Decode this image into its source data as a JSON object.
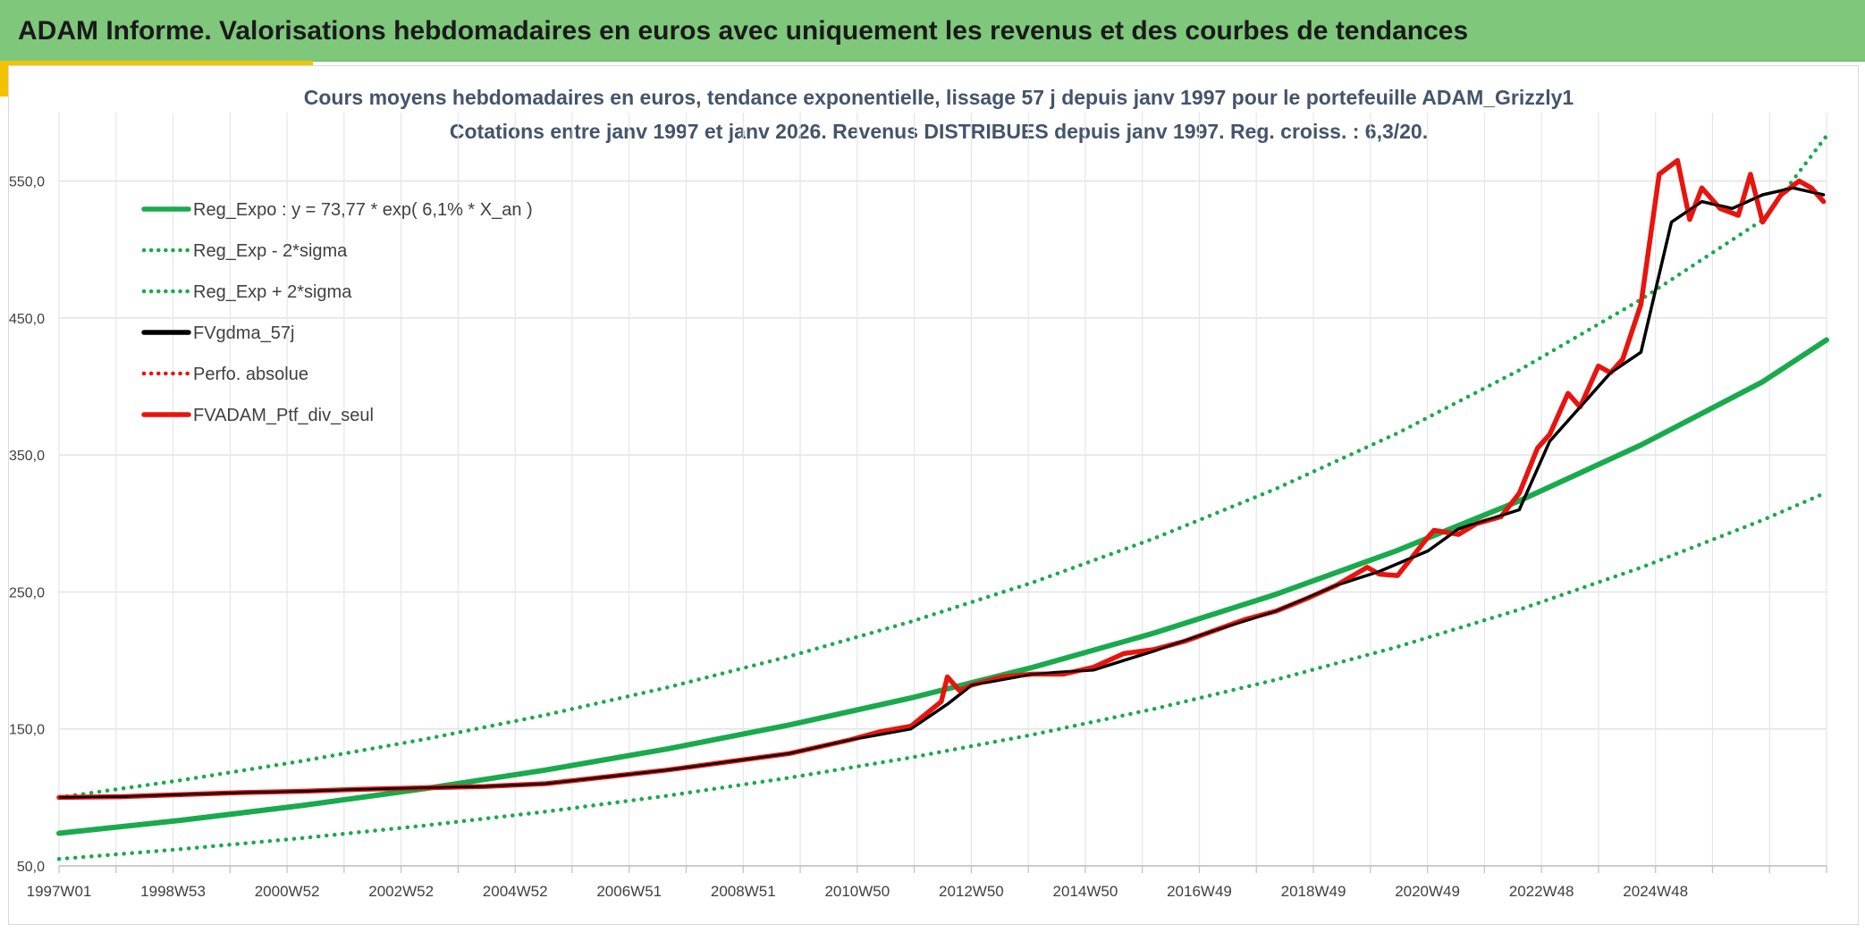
{
  "header": {
    "title": "ADAM Informe. Valorisations hebdomadaires en euros avec uniquement les revenus et des courbes de tendances"
  },
  "chart_data": {
    "type": "line",
    "title": "Cours moyens hebdomadaires en euros, tendance exponentielle, lissage 57 j depuis janv 1997 pour le portefeuille ADAM_Grizzly1",
    "subtitle": "Cotations entre janv 1997 et janv 2026. Revenus DISTRIBUES depuis janv 1997. Reg. croiss. : 6,3/20.",
    "xlabel": "",
    "ylabel": "",
    "x_ticks": [
      "1997W01",
      "1998W53",
      "2000W52",
      "2002W52",
      "2004W52",
      "2006W51",
      "2008W51",
      "2010W50",
      "2012W50",
      "2014W50",
      "2016W49",
      "2018W49",
      "2020W49",
      "2022W48",
      "2024W48"
    ],
    "x_range": [
      1997.0,
      2026.05
    ],
    "y_ticks": [
      "50,0",
      "150,0",
      "250,0",
      "350,0",
      "450,0",
      "550,0"
    ],
    "ylim": [
      50,
      600
    ],
    "grid": true,
    "legend_position": "top-left",
    "series": [
      {
        "name": "Reg_Expo : y = 73,77 * exp( 6,1% *  X_an )",
        "color": "#1aaa4e",
        "style": "solid",
        "x": [
          1997.0,
          1999.0,
          2001.0,
          2003.0,
          2005.0,
          2007.0,
          2009.0,
          2011.0,
          2013.0,
          2015.0,
          2017.0,
          2019.0,
          2021.0,
          2023.0,
          2025.0,
          2026.05
        ],
        "y": [
          73.8,
          83.3,
          94.1,
          106.3,
          120.0,
          135.4,
          152.9,
          172.6,
          194.9,
          220.0,
          248.3,
          280.4,
          316.5,
          357.3,
          403.4,
          434.0
        ]
      },
      {
        "name": "Reg_Exp - 2*sigma",
        "color": "#1aaa4e",
        "style": "dotted",
        "x": [
          1997.0,
          1999.0,
          2001.0,
          2003.0,
          2005.0,
          2007.0,
          2009.0,
          2011.0,
          2013.0,
          2015.0,
          2017.0,
          2019.0,
          2021.0,
          2023.0,
          2025.0,
          2026.05
        ],
        "y": [
          55.0,
          62.2,
          70.3,
          79.4,
          89.6,
          101.2,
          114.3,
          129.1,
          145.8,
          164.6,
          185.9,
          210.0,
          237.1,
          267.8,
          302.5,
          322.7
        ]
      },
      {
        "name": "Reg_Exp + 2*sigma",
        "color": "#1aaa4e",
        "style": "dotted",
        "x": [
          1997.0,
          1999.0,
          2001.0,
          2003.0,
          2005.0,
          2007.0,
          2009.0,
          2011.0,
          2013.0,
          2015.0,
          2017.0,
          2019.0,
          2021.0,
          2023.0,
          2025.0,
          2026.05
        ],
        "y": [
          100.0,
          112.5,
          126.6,
          142.4,
          160.2,
          180.3,
          202.9,
          228.3,
          256.9,
          289.1,
          325.3,
          366.0,
          411.9,
          463.5,
          521.6,
          583.0
        ]
      },
      {
        "name": "FVgdma_57j",
        "color": "#000000",
        "style": "solid",
        "x": [
          1997.0,
          1998.0,
          1999.0,
          2000.0,
          2001.0,
          2002.0,
          2003.0,
          2004.0,
          2005.0,
          2006.0,
          2007.0,
          2008.0,
          2009.0,
          2010.0,
          2011.0,
          2011.6,
          2012.0,
          2012.5,
          2013.0,
          2014.0,
          2015.0,
          2016.0,
          2017.0,
          2018.0,
          2018.7,
          2019.5,
          2020.0,
          2021.0,
          2021.5,
          2022.0,
          2022.5,
          2023.0,
          2023.5,
          2024.0,
          2024.5,
          2025.0,
          2025.5,
          2026.0
        ],
        "y": [
          100.0,
          100.5,
          102.0,
          103.5,
          104.5,
          106.0,
          107.0,
          108.0,
          110.0,
          115.0,
          120.0,
          126.0,
          132.0,
          142.0,
          150.0,
          168.0,
          182.0,
          186.0,
          190.0,
          193.0,
          207.0,
          222.0,
          236.0,
          255.0,
          265.0,
          280.0,
          296.0,
          310.0,
          360.0,
          385.0,
          410.0,
          425.0,
          520.0,
          535.0,
          530.0,
          540.0,
          545.0,
          540.0
        ]
      },
      {
        "name": "Perfo. absolue",
        "color": "#e8140e",
        "style": "dotted",
        "x": [],
        "y": []
      },
      {
        "name": "FVADAM_Ptf_div_seul",
        "color": "#e8140e",
        "style": "solid",
        "x": [
          1997.0,
          1998.0,
          1999.0,
          2000.0,
          2001.0,
          2002.0,
          2003.0,
          2004.0,
          2005.0,
          2006.0,
          2007.0,
          2008.0,
          2009.0,
          2010.0,
          2010.5,
          2011.0,
          2011.5,
          2011.6,
          2011.8,
          2012.0,
          2012.5,
          2013.0,
          2013.5,
          2014.0,
          2014.5,
          2015.0,
          2015.5,
          2016.0,
          2016.5,
          2017.0,
          2017.5,
          2018.0,
          2018.5,
          2018.7,
          2019.0,
          2019.5,
          2019.6,
          2020.0,
          2020.3,
          2020.7,
          2021.0,
          2021.3,
          2021.5,
          2021.8,
          2022.0,
          2022.3,
          2022.5,
          2022.7,
          2023.0,
          2023.3,
          2023.6,
          2023.8,
          2024.0,
          2024.3,
          2024.6,
          2024.8,
          2025.0,
          2025.3,
          2025.6,
          2025.8,
          2026.0
        ],
        "y": [
          100.0,
          100.5,
          102.0,
          103.5,
          104.5,
          106.0,
          107.0,
          108.0,
          110.0,
          115.0,
          120.0,
          126.0,
          132.0,
          142.0,
          148.0,
          152.0,
          170.0,
          188.0,
          178.0,
          182.0,
          188.0,
          190.0,
          190.0,
          195.0,
          205.0,
          208.0,
          214.0,
          222.0,
          230.0,
          236.0,
          245.0,
          255.0,
          268.0,
          263.0,
          262.0,
          290.0,
          295.0,
          292.0,
          300.0,
          305.0,
          322.0,
          355.0,
          365.0,
          395.0,
          385.0,
          415.0,
          410.0,
          420.0,
          460.0,
          555.0,
          565.0,
          522.0,
          545.0,
          530.0,
          525.0,
          555.0,
          520.0,
          540.0,
          550.0,
          545.0,
          535.0
        ]
      }
    ]
  }
}
